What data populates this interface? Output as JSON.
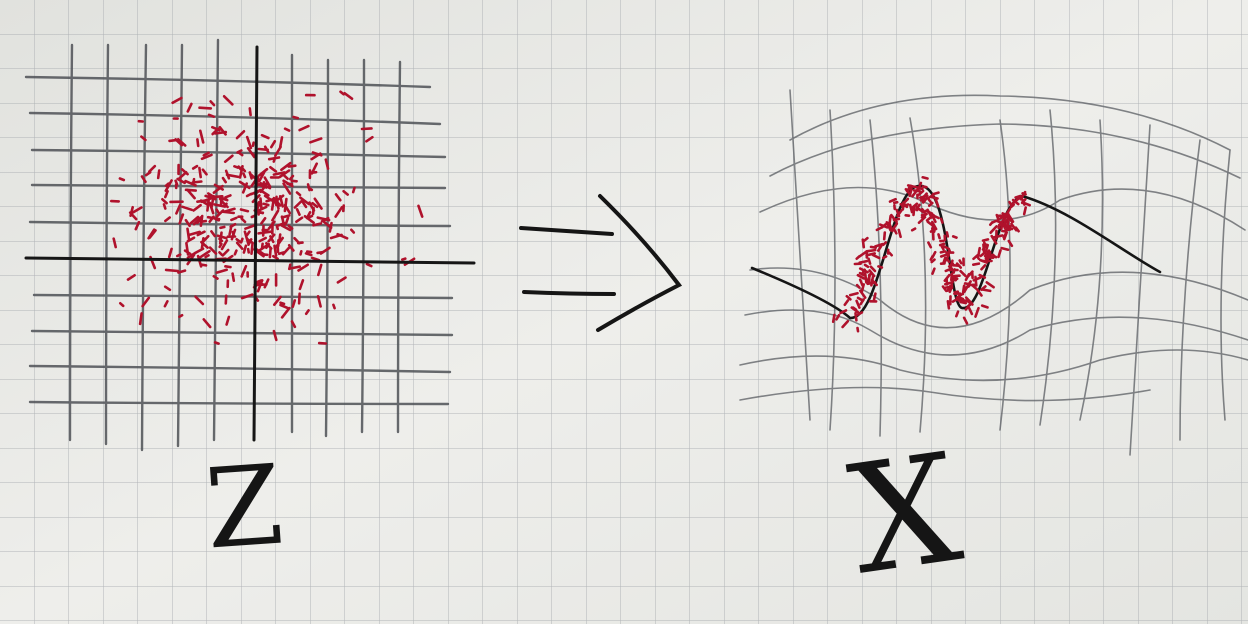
{
  "paper": {
    "background": "#e9eae6",
    "grid_line_color": "#9aa0a6",
    "pencil_color": "#4a4d52",
    "ink_color": "#141414",
    "dot_color": "#b0122c"
  },
  "labels": {
    "left_var": "Z",
    "right_var": "X"
  },
  "icons": {
    "arrow": "implies-arrow-icon"
  }
}
